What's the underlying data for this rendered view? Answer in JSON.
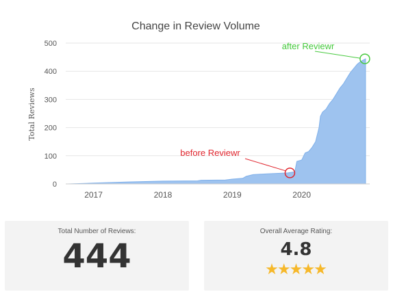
{
  "colors": {
    "area_fill": "#9ec3ef",
    "area_stroke": "#7fb0ea",
    "before_annotation": "#e0262e",
    "after_annotation": "#45c93c",
    "star": "#f6b82a",
    "grid": "#e6e6e6"
  },
  "chart_data": {
    "type": "area",
    "title": "Change in Review Volume",
    "ylabel": "Total Reviews",
    "xlabel": "",
    "ylim": [
      0,
      500
    ],
    "xlim": [
      2016.6,
      2020.98
    ],
    "grid": "horizontal",
    "y_ticks": [
      0,
      100,
      200,
      300,
      400,
      500
    ],
    "y_tick_labels": [
      "0",
      "100",
      "200",
      "300",
      "400",
      "500"
    ],
    "x_ticks": [
      2017,
      2018,
      2019,
      2020
    ],
    "x_tick_labels": [
      "2017",
      "2018",
      "2019",
      "2020"
    ],
    "x": [
      2016.63,
      2017.0,
      2017.5,
      2018.0,
      2018.5,
      2018.55,
      2018.9,
      2019.0,
      2019.15,
      2019.2,
      2019.3,
      2019.5,
      2019.8,
      2019.9,
      2019.93,
      2020.0,
      2020.05,
      2020.1,
      2020.15,
      2020.2,
      2020.25,
      2020.27,
      2020.3,
      2020.35,
      2020.4,
      2020.45,
      2020.5,
      2020.55,
      2020.6,
      2020.65,
      2020.7,
      2020.75,
      2020.8,
      2020.85,
      2020.92
    ],
    "y": [
      0,
      3,
      7,
      10,
      11,
      13,
      14,
      17,
      20,
      27,
      33,
      36,
      39,
      43,
      80,
      85,
      110,
      115,
      130,
      150,
      200,
      240,
      255,
      265,
      285,
      300,
      320,
      340,
      355,
      375,
      395,
      410,
      425,
      435,
      444
    ],
    "annotations": [
      {
        "text": "before Reviewr",
        "x": 2019.83,
        "y": 39
      },
      {
        "text": "after Reviewr",
        "x": 2020.92,
        "y": 444
      }
    ]
  },
  "summary": {
    "total_label": "Total Number of Reviews:",
    "total_value": "444",
    "rating_label": "Overall Average Rating:",
    "rating_value": "4.8",
    "stars": 5
  }
}
